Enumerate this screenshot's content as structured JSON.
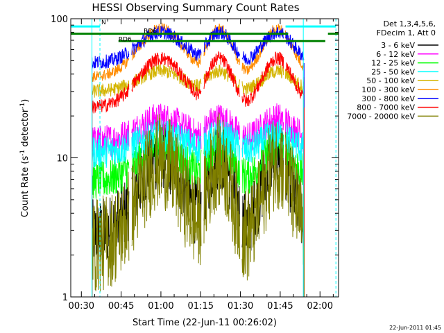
{
  "chart_data": {
    "type": "line",
    "title": "HESSI Observing Summary Count Rates",
    "xlabel": "Start Time (22-Jun-11 00:26:02)",
    "ylabel_main": "Count Rate (s",
    "ylabel_sup1": "-1",
    "ylabel_mid": " detector",
    "ylabel_sup2": "-1",
    "ylabel_end": ")",
    "yscale": "log",
    "ylim": [
      1,
      100
    ],
    "xlim_minutes": [
      26.0,
      127.0
    ],
    "x_ticks": [
      {
        "label": "00:30",
        "minutes": 30
      },
      {
        "label": "00:45",
        "minutes": 45
      },
      {
        "label": "01:00",
        "minutes": 60
      },
      {
        "label": "01:15",
        "minutes": 75
      },
      {
        "label": "01:30",
        "minutes": 90
      },
      {
        "label": "01:45",
        "minutes": 105
      },
      {
        "label": "02:00",
        "minutes": 120
      }
    ],
    "y_ticks": [
      {
        "label": "100",
        "value": 100
      },
      {
        "label": "10",
        "value": 10
      },
      {
        "label": "1",
        "value": 1
      }
    ],
    "legend_header": [
      "Det 1,3,4,5,6,",
      "FDecim 1, Att 0"
    ],
    "legend_placement": "right",
    "series": [
      {
        "name": "3 - 6 keV",
        "color": "#000000",
        "night": 2.8,
        "peak": 10.5
      },
      {
        "name": "6 - 12 keV",
        "color": "#ff00ff",
        "night": 13.0,
        "peak": 19.0
      },
      {
        "name": "12 - 25 keV",
        "color": "#00ff00",
        "night": 6.8,
        "peak": 12.0
      },
      {
        "name": "25 - 50 keV",
        "color": "#00ffff",
        "night": 11.0,
        "peak": 14.5
      },
      {
        "name": "50 - 100 keV",
        "color": "#d4b400",
        "night": 30.0,
        "peak": 42.0
      },
      {
        "name": "100 - 300 keV",
        "color": "#ff8c00",
        "night": 38.0,
        "peak": 85.0
      },
      {
        "name": "300 - 800 keV",
        "color": "#0000ff",
        "night": 48.0,
        "peak": 80.0
      },
      {
        "name": "800 - 7000 keV",
        "color": "#ff0000",
        "night": 23.0,
        "peak": 52.0
      },
      {
        "name": "7000 - 20000 keV",
        "color": "#808000",
        "night": 2.3,
        "peak": 9.5
      }
    ],
    "annotations": [
      {
        "text": "N",
        "minutes": 37.5,
        "value": 91
      },
      {
        "text": "RD6",
        "minutes": 44.0,
        "value": 69
      },
      {
        "text": "RD6",
        "minutes": 53.5,
        "value": 79
      }
    ],
    "flags": {
      "night": {
        "color": "#00ffff",
        "value": 88,
        "segments": [
          [
            26.0,
            37.0
          ],
          [
            107.0,
            126.0
          ]
        ]
      },
      "saa_or_decim": {
        "color": "#008000",
        "values": [
          78,
          69
        ]
      }
    }
  },
  "footer": {
    "timestamp": "22-Jun-2011 01:45"
  }
}
